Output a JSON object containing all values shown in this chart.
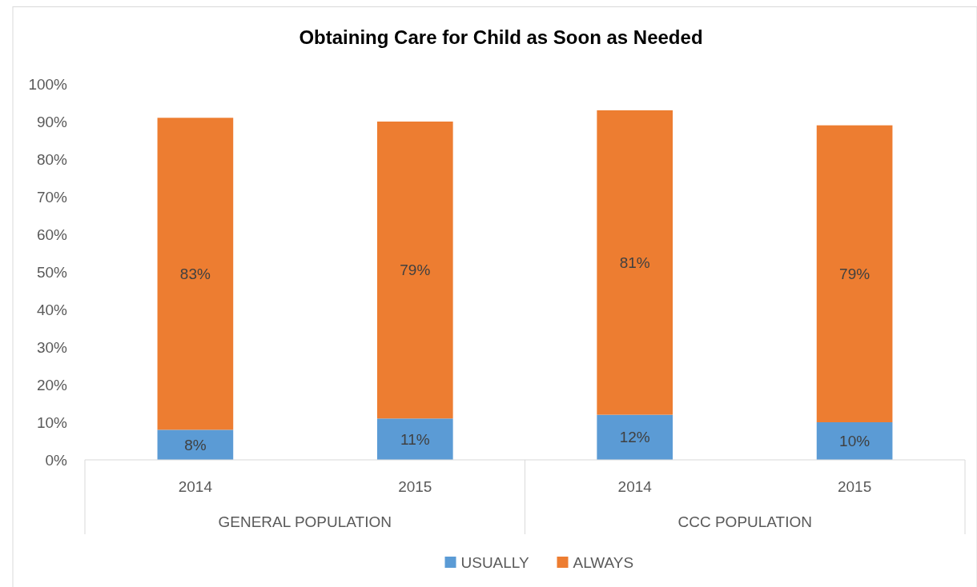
{
  "chart_data": {
    "type": "bar",
    "title": "Obtaining Care for Child as Soon as Needed",
    "stacked": true,
    "categories": [
      "2014",
      "2015",
      "2014",
      "2015"
    ],
    "annotations": [
      "GENERAL POPULATION",
      "CCC POPULATION"
    ],
    "series": [
      {
        "name": "USUALLY",
        "color": "#5b9bd5",
        "values": [
          8,
          11,
          12,
          10
        ],
        "value_labels": [
          "8%",
          "11%",
          "12%",
          "10%"
        ]
      },
      {
        "name": "ALWAYS",
        "color": "#ed7d31",
        "values": [
          83,
          79,
          81,
          79
        ],
        "value_labels": [
          "83%",
          "79%",
          "81%",
          "79%"
        ]
      }
    ],
    "ylim": [
      0,
      100
    ],
    "yticks": [
      {
        "value": 0,
        "label": "0%"
      },
      {
        "value": 10,
        "label": "10%"
      },
      {
        "value": 20,
        "label": "20%"
      },
      {
        "value": 30,
        "label": "30%"
      },
      {
        "value": 40,
        "label": "40%"
      },
      {
        "value": 50,
        "label": "50%"
      },
      {
        "value": 60,
        "label": "60%"
      },
      {
        "value": 70,
        "label": "70%"
      },
      {
        "value": 80,
        "label": "80%"
      },
      {
        "value": 90,
        "label": "90%"
      },
      {
        "value": 100,
        "label": "100%"
      }
    ],
    "grid": false,
    "legend": "bottom"
  }
}
